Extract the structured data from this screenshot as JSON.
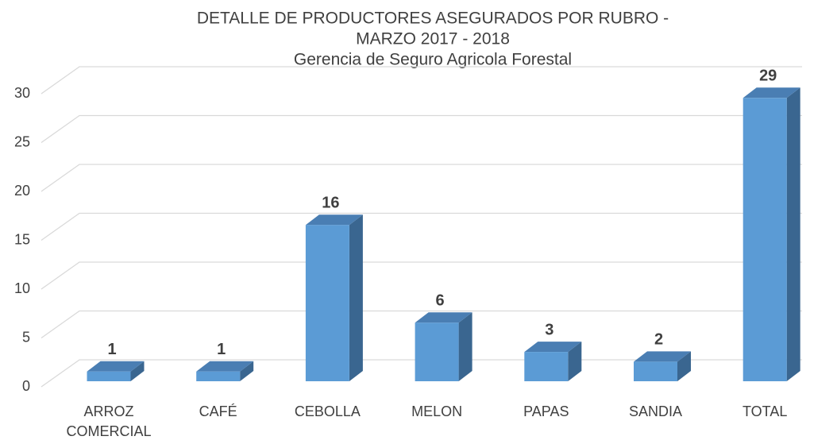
{
  "chart_data": {
    "type": "bar",
    "title": [
      "DETALLE DE PRODUCTORES ASEGURADOS POR RUBRO -",
      "MARZO 2017 - 2018"
    ],
    "subtitle": "Gerencia de Seguro Agricola Forestal",
    "categories": [
      "ARROZ COMERCIAL",
      "CAFÉ",
      "CEBOLLA",
      "MELON",
      "PAPAS",
      "SANDIA",
      "TOTAL"
    ],
    "values": [
      1,
      1,
      16,
      6,
      3,
      2,
      29
    ],
    "color": "#5b9bd5",
    "ylim": [
      0,
      30
    ],
    "yticks": [
      0,
      5,
      10,
      15,
      20,
      25,
      30
    ],
    "grid": true
  }
}
